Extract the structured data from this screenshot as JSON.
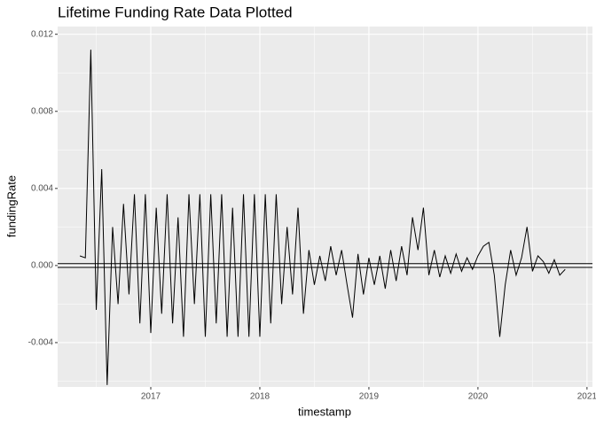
{
  "chart_data": {
    "type": "line",
    "title": "Lifetime Funding Rate Data Plotted",
    "x_label": "timestamp",
    "y_label": "fundingRate",
    "x": [
      2016.35,
      2016.4,
      2016.45,
      2016.5,
      2016.55,
      2016.6,
      2016.65,
      2016.7,
      2016.75,
      2016.8,
      2016.85,
      2016.9,
      2016.95,
      2017.0,
      2017.05,
      2017.1,
      2017.15,
      2017.2,
      2017.25,
      2017.3,
      2017.35,
      2017.4,
      2017.45,
      2017.5,
      2017.55,
      2017.6,
      2017.65,
      2017.7,
      2017.75,
      2017.8,
      2017.85,
      2017.9,
      2017.95,
      2018.0,
      2018.05,
      2018.1,
      2018.15,
      2018.2,
      2018.25,
      2018.3,
      2018.35,
      2018.4,
      2018.45,
      2018.5,
      2018.55,
      2018.6,
      2018.65,
      2018.7,
      2018.75,
      2018.8,
      2018.85,
      2018.9,
      2018.95,
      2019.0,
      2019.05,
      2019.1,
      2019.15,
      2019.2,
      2019.25,
      2019.3,
      2019.35,
      2019.4,
      2019.45,
      2019.5,
      2019.55,
      2019.6,
      2019.65,
      2019.7,
      2019.75,
      2019.8,
      2019.85,
      2019.9,
      2019.95,
      2020.0,
      2020.05,
      2020.1,
      2020.15,
      2020.2,
      2020.25,
      2020.3,
      2020.35,
      2020.4,
      2020.45,
      2020.5,
      2020.55,
      2020.6,
      2020.65,
      2020.7,
      2020.75,
      2020.8
    ],
    "series": [
      {
        "color": "#000000",
        "values": [
          0.0005,
          0.0004,
          0.0112,
          -0.0023,
          0.005,
          -0.0062,
          0.002,
          -0.002,
          0.0032,
          -0.0015,
          0.0037,
          -0.003,
          0.0037,
          -0.0035,
          0.003,
          -0.0025,
          0.0037,
          -0.003,
          0.0025,
          -0.0037,
          0.0037,
          -0.002,
          0.0037,
          -0.0037,
          0.0037,
          -0.003,
          0.0037,
          -0.0037,
          0.003,
          -0.0037,
          0.0037,
          -0.0037,
          0.0037,
          -0.0037,
          0.0037,
          -0.003,
          0.0037,
          -0.002,
          0.002,
          -0.0015,
          0.003,
          -0.0025,
          0.0008,
          -0.001,
          0.0005,
          -0.0008,
          0.001,
          -0.0005,
          0.0008,
          -0.001,
          -0.0027,
          0.0006,
          -0.0015,
          0.0004,
          -0.001,
          0.0005,
          -0.0012,
          0.0008,
          -0.0008,
          0.001,
          -0.0005,
          0.0025,
          0.0008,
          0.003,
          -0.0005,
          0.0008,
          -0.0006,
          0.0005,
          -0.0004,
          0.0006,
          -0.0003,
          0.0004,
          -0.0002,
          0.0005,
          0.001,
          0.0012,
          -0.0005,
          -0.0037,
          -0.001,
          0.0008,
          -0.0005,
          0.0004,
          0.002,
          -0.0003,
          0.0005,
          0.0002,
          -0.0004,
          0.0003,
          -0.0005,
          -0.0002
        ]
      }
    ],
    "hlines": [
      0.0001,
      -0.0001
    ],
    "xlim": [
      2016.146,
      2021.05
    ],
    "xticks": [
      2017,
      2018,
      2019,
      2020,
      2021
    ],
    "x_minor_ticks": [
      2016.5,
      2017.5,
      2018.5,
      2019.5,
      2020.5
    ],
    "ylim": [
      -0.0063,
      0.0124
    ],
    "yticks": [
      -0.004,
      {
        "value": 0,
        "label": "0.000"
      },
      0.004,
      0.008,
      0.012
    ],
    "y_minor_ticks": [
      -0.006,
      -0.002,
      0.002,
      0.006,
      0.01
    ],
    "grid": true
  }
}
